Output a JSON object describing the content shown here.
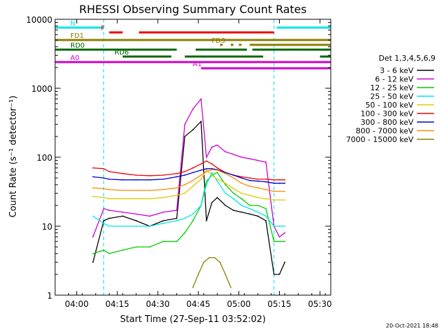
{
  "chart_data": {
    "type": "line",
    "title": "RHESSI Observing Summary Count Rates",
    "xlabel": "Start Time (27-Sep-11 03:52:02)",
    "ylabel": "Count Rate (s⁻¹ detector⁻¹)",
    "x_range": [
      "03:52",
      "05:34"
    ],
    "yscale": "log",
    "ylim": [
      1,
      10000
    ],
    "x_ticks": [
      "04:00",
      "04:15",
      "04:30",
      "04:45",
      "05:00",
      "05:15",
      "05:30"
    ],
    "y_ticks": [
      "1",
      "10",
      "100",
      "1000",
      "10000"
    ],
    "legend_title": "Det 1,3,4,5,6,9",
    "legend_position": "right",
    "data_gap": [
      "04:10",
      "05:13"
    ],
    "series": [
      {
        "name": "3 - 6 keV",
        "color": "#000000",
        "x": [
          "04:06",
          "04:10",
          "04:12",
          "04:17",
          "04:22",
          "04:27",
          "04:32",
          "04:37",
          "04:40",
          "04:43",
          "04:46",
          "04:48",
          "04:50",
          "04:52",
          "04:55",
          "04:58",
          "05:01",
          "05:04",
          "05:07",
          "05:10",
          "05:13",
          "05:15",
          "05:17"
        ],
        "values": [
          3,
          12,
          13,
          14,
          12,
          10,
          12,
          13,
          200,
          250,
          330,
          12,
          22,
          26,
          20,
          17,
          16,
          15,
          14,
          12,
          2,
          2,
          3
        ]
      },
      {
        "name": "6 - 12 keV",
        "color": "#cc00cc",
        "x": [
          "04:06",
          "04:10",
          "04:12",
          "04:17",
          "04:22",
          "04:27",
          "04:32",
          "04:37",
          "04:40",
          "04:43",
          "04:46",
          "04:48",
          "04:50",
          "04:52",
          "04:55",
          "04:58",
          "05:01",
          "05:04",
          "05:07",
          "05:10",
          "05:13",
          "05:15",
          "05:17"
        ],
        "values": [
          7,
          18,
          17,
          16,
          15,
          14,
          16,
          17,
          300,
          500,
          700,
          100,
          140,
          150,
          120,
          110,
          100,
          95,
          90,
          85,
          10,
          7,
          8
        ]
      },
      {
        "name": "12 - 25 keV",
        "color": "#00cc00",
        "x": [
          "04:06",
          "04:10",
          "04:12",
          "04:17",
          "04:22",
          "04:27",
          "04:32",
          "04:37",
          "04:40",
          "04:43",
          "04:46",
          "04:48",
          "04:50",
          "04:52",
          "04:55",
          "04:58",
          "05:01",
          "05:04",
          "05:07",
          "05:10",
          "05:13",
          "05:15",
          "05:17"
        ],
        "values": [
          4,
          4.5,
          4,
          4.5,
          5,
          5,
          6,
          6,
          8,
          12,
          20,
          45,
          55,
          60,
          40,
          30,
          25,
          20,
          20,
          18,
          6,
          6,
          6
        ]
      },
      {
        "name": "25 - 50 keV",
        "color": "#00e5e5",
        "x": [
          "04:06",
          "04:10",
          "04:12",
          "04:17",
          "04:22",
          "04:27",
          "04:32",
          "04:37",
          "04:40",
          "04:43",
          "04:46",
          "04:48",
          "04:50",
          "04:52",
          "04:55",
          "04:58",
          "05:01",
          "05:04",
          "05:07",
          "05:10",
          "05:13",
          "05:15",
          "05:17"
        ],
        "values": [
          14,
          11,
          10,
          10,
          10,
          10,
          11,
          12,
          13,
          15,
          20,
          40,
          60,
          45,
          30,
          25,
          20,
          18,
          16,
          14,
          10,
          10,
          10
        ]
      },
      {
        "name": "50 - 100 keV",
        "color": "#e5c800",
        "x": [
          "04:06",
          "04:10",
          "04:12",
          "04:17",
          "04:22",
          "04:27",
          "04:32",
          "04:37",
          "04:40",
          "04:43",
          "04:46",
          "04:48",
          "04:50",
          "04:52",
          "04:55",
          "04:58",
          "05:01",
          "05:04",
          "05:07",
          "05:10",
          "05:13",
          "05:15",
          "05:17"
        ],
        "values": [
          27,
          26,
          25,
          25,
          25,
          25,
          26,
          28,
          30,
          38,
          48,
          65,
          55,
          48,
          42,
          35,
          30,
          28,
          26,
          25,
          24,
          24,
          24
        ]
      },
      {
        "name": "100 - 300 keV",
        "color": "#ee0000",
        "x": [
          "04:06",
          "04:10",
          "04:12",
          "04:17",
          "04:22",
          "04:27",
          "04:32",
          "04:37",
          "04:40",
          "04:43",
          "04:46",
          "04:48",
          "04:50",
          "04:52",
          "04:55",
          "04:58",
          "05:01",
          "05:04",
          "05:07",
          "05:10",
          "05:13",
          "05:15",
          "05:17"
        ],
        "values": [
          70,
          68,
          62,
          58,
          55,
          54,
          55,
          58,
          62,
          70,
          80,
          88,
          80,
          70,
          60,
          55,
          52,
          50,
          48,
          48,
          47,
          47,
          47
        ]
      },
      {
        "name": "300 - 800 keV",
        "color": "#0000cc",
        "x": [
          "04:06",
          "04:10",
          "04:12",
          "04:17",
          "04:22",
          "04:27",
          "04:32",
          "04:37",
          "04:40",
          "04:43",
          "04:46",
          "04:48",
          "04:50",
          "04:52",
          "04:55",
          "04:58",
          "05:01",
          "05:04",
          "05:07",
          "05:10",
          "05:13",
          "05:15",
          "05:17"
        ],
        "values": [
          52,
          50,
          48,
          47,
          47,
          47,
          48,
          52,
          55,
          60,
          65,
          68,
          68,
          66,
          60,
          55,
          50,
          46,
          45,
          44,
          42,
          42,
          42
        ]
      },
      {
        "name": "800 - 7000 keV",
        "color": "#ff8800",
        "x": [
          "04:06",
          "04:10",
          "04:12",
          "04:17",
          "04:22",
          "04:27",
          "04:32",
          "04:37",
          "04:40",
          "04:43",
          "04:46",
          "04:48",
          "04:50",
          "04:52",
          "04:55",
          "04:58",
          "05:01",
          "05:04",
          "05:07",
          "05:10",
          "05:13",
          "05:15",
          "05:17"
        ],
        "values": [
          36,
          35,
          34,
          33,
          33,
          33,
          34,
          36,
          40,
          46,
          55,
          62,
          66,
          65,
          58,
          50,
          42,
          38,
          36,
          34,
          32,
          32,
          32
        ]
      },
      {
        "name": "7000 - 15000 keV",
        "color": "#8b7d00",
        "x": [
          "04:43",
          "04:45",
          "04:47",
          "04:49",
          "04:51",
          "04:53",
          "04:55",
          "04:57"
        ],
        "values": [
          1.3,
          2,
          3,
          3.5,
          3.5,
          3,
          2,
          1.3
        ]
      }
    ],
    "flag_bars": [
      {
        "label": "N",
        "color": "#00e5e5",
        "segments": [
          [
            "03:52",
            "04:10"
          ],
          [
            "05:14",
            "05:34"
          ]
        ]
      },
      {
        "label": "F",
        "color": "#ee0000",
        "segments": [
          [
            "04:12",
            "04:17"
          ],
          [
            "04:23",
            "05:13"
          ]
        ]
      },
      {
        "label": "FD1",
        "color": "#8b7d00",
        "segments": [
          [
            "03:52",
            "05:34"
          ]
        ]
      },
      {
        "label": "FD3",
        "color": "#8b7d00",
        "segments": [
          [
            "04:53",
            "04:54"
          ],
          [
            "04:57",
            "04:58"
          ],
          [
            "05:00",
            "05:01"
          ],
          [
            "05:04",
            "05:34"
          ]
        ]
      },
      {
        "label": "RD0",
        "color": "#006600",
        "segments": [
          [
            "03:52",
            "04:37"
          ],
          [
            "04:44",
            "05:03"
          ],
          [
            "05:05",
            "05:34"
          ]
        ]
      },
      {
        "label": "RD6",
        "color": "#006600",
        "segments": [
          [
            "04:17",
            "04:35"
          ],
          [
            "04:40",
            "05:09"
          ],
          [
            "05:30",
            "05:34"
          ]
        ]
      },
      {
        "label": "A0",
        "color": "#cc00cc",
        "segments": [
          [
            "03:52",
            "05:34"
          ]
        ]
      },
      {
        "label": "A1",
        "color": "#cc00cc",
        "segments": [
          [
            "04:46",
            "05:34"
          ]
        ]
      }
    ],
    "footer_date": "20-Oct-2021 18:48"
  },
  "grid": false
}
